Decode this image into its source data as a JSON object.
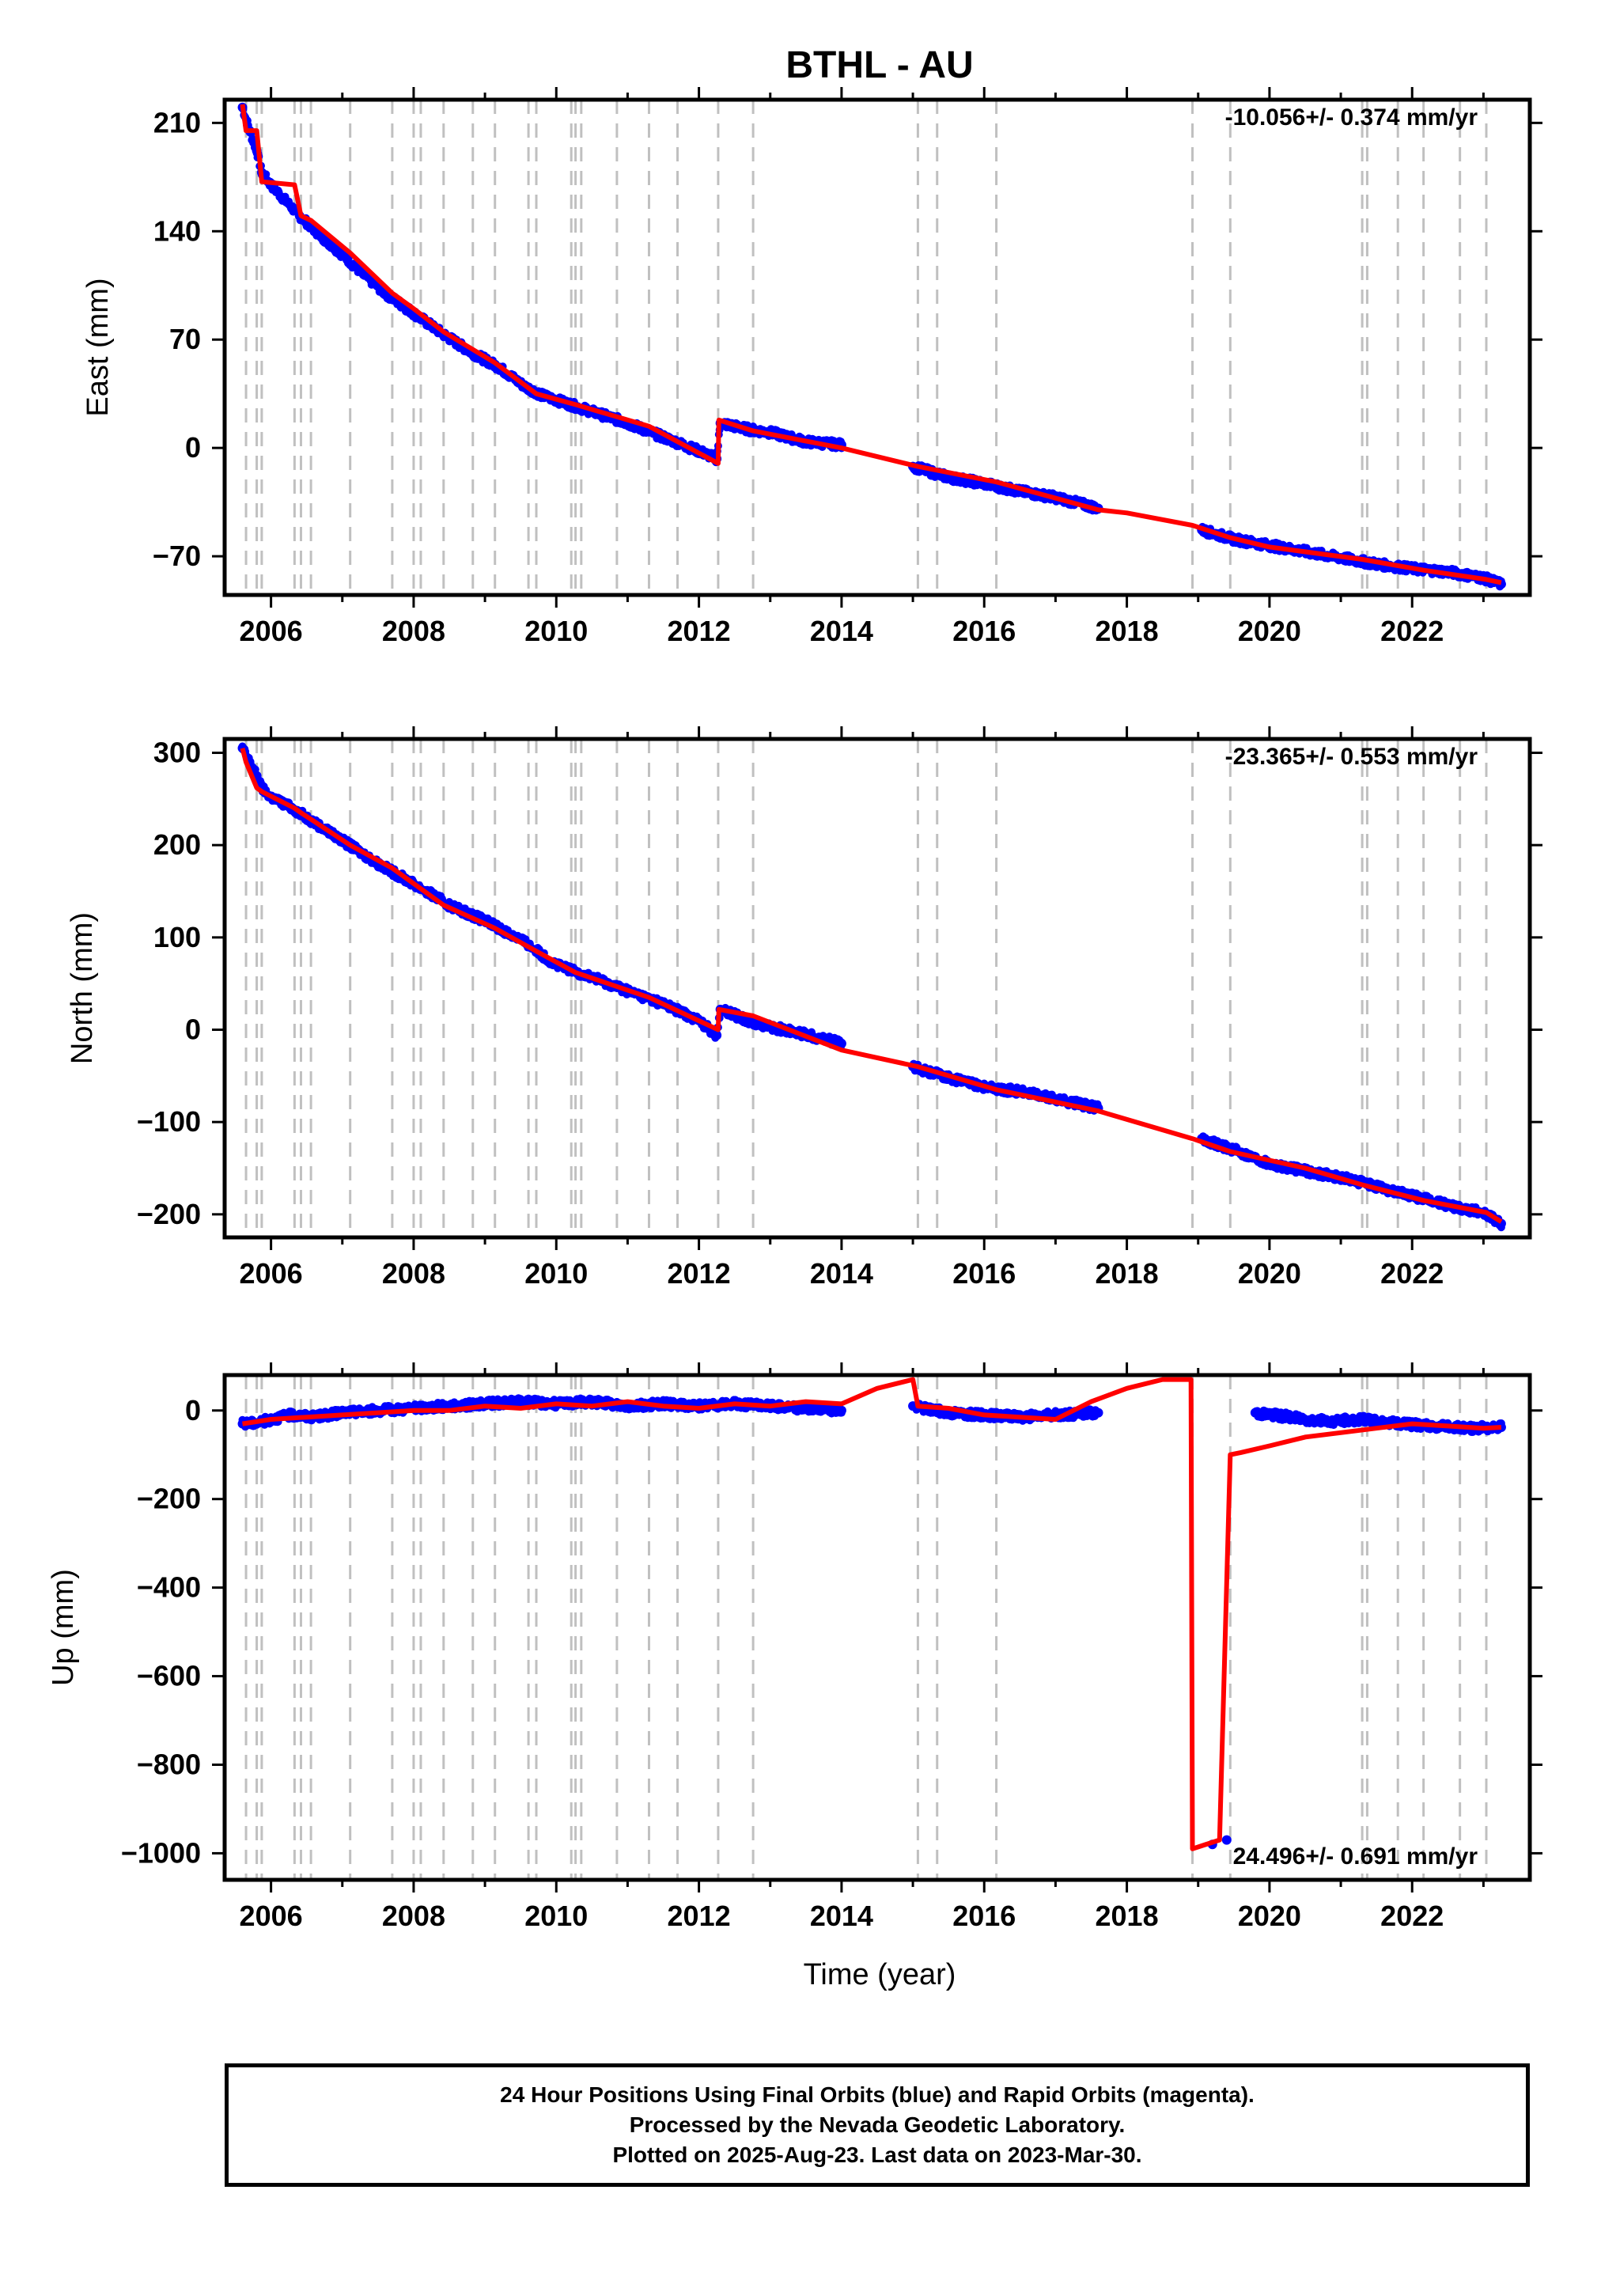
{
  "title": "BTHL - AU",
  "xlabel": "Time (year)",
  "caption": {
    "line1": "24 Hour Positions Using Final Orbits (blue) and Rapid Orbits (magenta).",
    "line2": "Processed by the Nevada Geodetic Laboratory.",
    "line3": "Plotted on 2025-Aug-23. Last data on 2023-Mar-30."
  },
  "colors": {
    "data": "#0000ff",
    "model": "#ff0000",
    "steps": "#c0c0c0",
    "frame": "#000000"
  },
  "step_lines": [
    2005.65,
    2005.8,
    2005.87,
    2006.33,
    2006.42,
    2006.56,
    2007.11,
    2007.7,
    2008.0,
    2008.1,
    2008.42,
    2008.83,
    2009.14,
    2009.61,
    2009.72,
    2010.21,
    2010.27,
    2010.35,
    2010.85,
    2011.3,
    2011.7,
    2012.27,
    2012.76,
    2015.07,
    2015.34,
    2016.17,
    2018.92,
    2019.45,
    2021.3,
    2021.37,
    2021.8,
    2022.16,
    2022.67,
    2023.04
  ],
  "chart_data": [
    {
      "type": "scatter",
      "name": "east",
      "ylabel": "East (mm)",
      "rate_label": "-10.056+/- 0.374 mm/yr",
      "xlim": [
        2005.35,
        2023.65
      ],
      "ylim": [
        -95,
        225
      ],
      "xticks": [
        2006,
        2008,
        2010,
        2012,
        2014,
        2016,
        2018,
        2020,
        2022
      ],
      "yticks": [
        -70,
        0,
        70,
        140,
        210
      ],
      "ytick_labels": [
        "−70",
        "0",
        "70",
        "140",
        "210"
      ],
      "gaps": [
        [
          2014.0,
          2015.0
        ],
        [
          2017.6,
          2019.05
        ]
      ],
      "series": [
        {
          "type": "scatter",
          "x": [
            2005.6,
            2005.7,
            2005.8,
            2005.87,
            2006.0,
            2006.2,
            2006.4,
            2006.7,
            2007.0,
            2007.3,
            2007.6,
            2008.0,
            2008.4,
            2008.8,
            2009.2,
            2009.55,
            2009.8,
            2010.2,
            2010.6,
            2011.0,
            2011.5,
            2012.0,
            2012.25,
            2012.3,
            2012.7,
            2013.0,
            2013.5,
            2014.0,
            2015.0,
            2015.5,
            2016.0,
            2016.5,
            2017.0,
            2017.6,
            2019.05,
            2019.5,
            2020.0,
            2020.5,
            2021.0,
            2021.5,
            2022.0,
            2022.5,
            2023.0,
            2023.25
          ],
          "y": [
            220,
            205,
            192,
            178,
            170,
            160,
            150,
            137,
            125,
            112,
            100,
            87,
            74,
            62,
            52,
            40,
            34,
            28,
            22,
            16,
            7,
            -2,
            -7,
            16,
            12,
            10,
            4,
            2,
            -12,
            -19,
            -23,
            -28,
            -32,
            -39,
            -53,
            -59,
            -63,
            -67,
            -71,
            -75,
            -78,
            -80,
            -84,
            -88
          ]
        },
        {
          "type": "line",
          "x": [
            2005.6,
            2005.65,
            2005.8,
            2005.87,
            2006.33,
            2006.42,
            2006.56,
            2007.11,
            2007.7,
            2008.0,
            2008.42,
            2009.14,
            2009.72,
            2010.27,
            2011.3,
            2012.27,
            2012.28,
            2012.76,
            2014.0,
            2015.07,
            2016.17,
            2017.6,
            2018.0,
            2018.92,
            2019.45,
            2020.0,
            2021.3,
            2022.16,
            2023.04,
            2023.25
          ],
          "y": [
            222,
            205,
            205,
            172,
            170,
            150,
            147,
            126,
            100,
            90,
            75,
            55,
            35,
            28,
            14,
            -10,
            18,
            11,
            0,
            -12,
            -22,
            -40,
            -42,
            -50,
            -58,
            -64,
            -72,
            -79,
            -85,
            -87
          ]
        }
      ]
    },
    {
      "type": "scatter",
      "name": "north",
      "ylabel": "North (mm)",
      "rate_label": "-23.365+/- 0.553 mm/yr",
      "xlim": [
        2005.35,
        2023.65
      ],
      "ylim": [
        -225,
        315
      ],
      "xticks": [
        2006,
        2008,
        2010,
        2012,
        2014,
        2016,
        2018,
        2020,
        2022
      ],
      "yticks": [
        -200,
        -100,
        0,
        100,
        200,
        300
      ],
      "ytick_labels": [
        "−200",
        "−100",
        "0",
        "100",
        "200",
        "300"
      ],
      "gaps": [
        [
          2014.0,
          2015.0
        ],
        [
          2017.6,
          2019.05
        ]
      ],
      "series": [
        {
          "type": "scatter",
          "x": [
            2005.6,
            2005.7,
            2005.8,
            2005.87,
            2006.0,
            2006.3,
            2006.6,
            2007.0,
            2007.5,
            2008.0,
            2008.5,
            2009.0,
            2009.5,
            2010.0,
            2010.5,
            2011.0,
            2011.5,
            2012.0,
            2012.25,
            2012.3,
            2012.7,
            2013.0,
            2013.5,
            2014.0,
            2015.0,
            2015.5,
            2016.0,
            2016.5,
            2017.0,
            2017.6,
            2019.05,
            2019.5,
            2020.0,
            2020.5,
            2021.0,
            2021.5,
            2022.0,
            2022.5,
            2023.0,
            2023.25
          ],
          "y": [
            305,
            290,
            275,
            262,
            252,
            240,
            225,
            205,
            180,
            158,
            135,
            118,
            98,
            70,
            57,
            42,
            28,
            10,
            -6,
            22,
            10,
            3,
            -5,
            -15,
            -40,
            -52,
            -62,
            -67,
            -75,
            -85,
            -118,
            -130,
            -145,
            -153,
            -160,
            -170,
            -180,
            -190,
            -198,
            -210
          ]
        },
        {
          "type": "line",
          "x": [
            2005.6,
            2005.65,
            2005.8,
            2005.87,
            2006.33,
            2006.42,
            2006.56,
            2007.11,
            2007.7,
            2008.42,
            2009.14,
            2009.72,
            2010.27,
            2011.3,
            2012.27,
            2012.28,
            2012.76,
            2014.0,
            2015.07,
            2016.17,
            2017.6,
            2018.92,
            2019.45,
            2020.5,
            2021.3,
            2022.16,
            2023.04,
            2023.25
          ],
          "y": [
            305,
            290,
            262,
            258,
            240,
            235,
            228,
            200,
            175,
            135,
            110,
            85,
            62,
            35,
            0,
            22,
            15,
            -22,
            -40,
            -65,
            -88,
            -118,
            -132,
            -150,
            -168,
            -185,
            -198,
            -208
          ]
        }
      ]
    },
    {
      "type": "scatter",
      "name": "up",
      "ylabel": "Up (mm)",
      "rate_label": "24.496+/- 0.691 mm/yr",
      "xlim": [
        2005.35,
        2023.65
      ],
      "ylim": [
        -1060,
        80
      ],
      "xticks": [
        2006,
        2008,
        2010,
        2012,
        2014,
        2016,
        2018,
        2020,
        2022
      ],
      "yticks": [
        -1000,
        -800,
        -600,
        -400,
        -200,
        0
      ],
      "ytick_labels": [
        "−1000",
        "−800",
        "−600",
        "−400",
        "−200",
        "0"
      ],
      "gaps": [
        [
          2014.0,
          2015.0
        ],
        [
          2017.6,
          2019.8
        ]
      ],
      "series": [
        {
          "type": "scatter",
          "x": [
            2005.6,
            2005.8,
            2006.0,
            2006.3,
            2006.6,
            2007.0,
            2007.5,
            2008.0,
            2008.5,
            2009.0,
            2009.5,
            2010.0,
            2010.5,
            2011.0,
            2011.5,
            2012.0,
            2012.5,
            2013.0,
            2013.5,
            2014.0,
            2015.0,
            2015.5,
            2016.0,
            2016.5,
            2017.0,
            2017.6,
            2019.2,
            2019.4,
            2019.8,
            2020.3,
            2020.8,
            2021.3,
            2021.8,
            2022.3,
            2022.8,
            2023.25
          ],
          "y": [
            -30,
            -28,
            -20,
            -10,
            -15,
            -5,
            0,
            5,
            10,
            15,
            20,
            15,
            20,
            10,
            15,
            10,
            15,
            10,
            5,
            0,
            10,
            -5,
            -10,
            -15,
            -10,
            -5,
            -980,
            -970,
            -5,
            -15,
            -25,
            -20,
            -30,
            -35,
            -40,
            -38
          ]
        },
        {
          "type": "line",
          "x": [
            2005.6,
            2006.0,
            2006.5,
            2007.0,
            2007.5,
            2008.0,
            2008.5,
            2009.0,
            2009.5,
            2010.0,
            2010.5,
            2011.0,
            2011.5,
            2012.0,
            2012.5,
            2013.0,
            2013.5,
            2014.0,
            2014.5,
            2015.0,
            2015.07,
            2015.5,
            2016.0,
            2016.5,
            2017.0,
            2017.5,
            2018.0,
            2018.5,
            2018.9,
            2018.92,
            2019.3,
            2019.45,
            2019.6,
            2020.0,
            2020.5,
            2021.0,
            2021.5,
            2022.0,
            2022.5,
            2023.0,
            2023.25
          ],
          "y": [
            -30,
            -20,
            -15,
            -10,
            -5,
            0,
            0,
            10,
            5,
            15,
            10,
            20,
            10,
            5,
            15,
            10,
            20,
            15,
            50,
            70,
            10,
            5,
            -10,
            -15,
            -20,
            20,
            50,
            70,
            70,
            -990,
            -970,
            -100,
            -95,
            -80,
            -60,
            -50,
            -40,
            -30,
            -35,
            -40,
            -38
          ]
        }
      ]
    }
  ]
}
